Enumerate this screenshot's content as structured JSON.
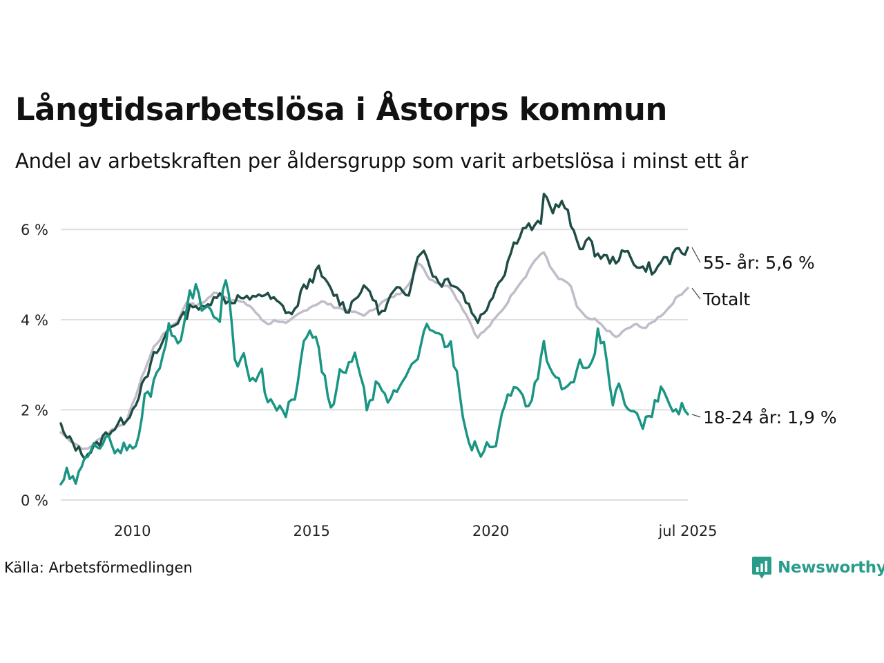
{
  "header": {
    "title": "Långtidsarbetslösa i Åstorps kommun",
    "subtitle": "Andel av arbetskraften per åldersgrupp som varit arbetslösa i minst ett år"
  },
  "footer": {
    "source": "Källa: Arbetsförmedlingen",
    "brand": "Newsworthy",
    "brand_icon": "newsworthy-logo-icon"
  },
  "colors": {
    "s55": "#1f4d45",
    "total": "#c0bcc9",
    "s1824": "#1a9583",
    "grid": "#dddddd"
  },
  "chart_data": {
    "type": "line",
    "title": "Långtidsarbetslösa i Åstorps kommun",
    "subtitle": "Andel av arbetskraften per åldersgrupp som varit arbetslösa i minst ett år",
    "xlabel": "",
    "ylabel": "",
    "x_start": "2008-01",
    "x_end": "2025-07",
    "x_ticks": [
      {
        "label": "2010",
        "x": 2010.0
      },
      {
        "label": "2015",
        "x": 2015.0
      },
      {
        "label": "2020",
        "x": 2020.0
      },
      {
        "label": "jul 2025",
        "x": 2025.5
      }
    ],
    "y_ticks": [
      {
        "label": "0 %",
        "value": 0
      },
      {
        "label": "2 %",
        "value": 2
      },
      {
        "label": "4 %",
        "value": 4
      },
      {
        "label": "6 %",
        "value": 6
      }
    ],
    "ylim": [
      0,
      6.8
    ],
    "grid": true,
    "series": [
      {
        "key": "total",
        "name": "Totalt",
        "label": "Totalt",
        "color": "#c0bcc9",
        "anchors": [
          [
            2008.0,
            1.5
          ],
          [
            2008.3,
            1.3
          ],
          [
            2008.7,
            1.1
          ],
          [
            2009.0,
            1.3
          ],
          [
            2009.5,
            1.6
          ],
          [
            2009.8,
            1.7
          ],
          [
            2010.0,
            2.1
          ],
          [
            2010.3,
            2.8
          ],
          [
            2010.6,
            3.4
          ],
          [
            2010.8,
            3.6
          ],
          [
            2011.0,
            3.8
          ],
          [
            2011.3,
            4.0
          ],
          [
            2011.5,
            4.4
          ],
          [
            2011.8,
            4.3
          ],
          [
            2012.0,
            4.4
          ],
          [
            2012.3,
            4.6
          ],
          [
            2012.6,
            4.5
          ],
          [
            2013.0,
            4.4
          ],
          [
            2013.3,
            4.3
          ],
          [
            2013.6,
            4.0
          ],
          [
            2013.8,
            3.9
          ],
          [
            2014.0,
            4.0
          ],
          [
            2014.3,
            3.9
          ],
          [
            2014.6,
            4.1
          ],
          [
            2015.0,
            4.3
          ],
          [
            2015.3,
            4.4
          ],
          [
            2015.6,
            4.3
          ],
          [
            2016.0,
            4.2
          ],
          [
            2016.5,
            4.1
          ],
          [
            2017.0,
            4.4
          ],
          [
            2017.5,
            4.6
          ],
          [
            2017.8,
            4.9
          ],
          [
            2018.0,
            5.3
          ],
          [
            2018.3,
            4.9
          ],
          [
            2018.6,
            4.8
          ],
          [
            2018.9,
            4.7
          ],
          [
            2019.1,
            4.4
          ],
          [
            2019.4,
            4.0
          ],
          [
            2019.6,
            3.6
          ],
          [
            2019.9,
            3.8
          ],
          [
            2020.1,
            4.0
          ],
          [
            2020.4,
            4.3
          ],
          [
            2020.7,
            4.7
          ],
          [
            2021.0,
            5.0
          ],
          [
            2021.2,
            5.3
          ],
          [
            2021.5,
            5.5
          ],
          [
            2021.7,
            5.1
          ],
          [
            2021.9,
            4.9
          ],
          [
            2022.2,
            4.8
          ],
          [
            2022.4,
            4.3
          ],
          [
            2022.7,
            4.0
          ],
          [
            2022.9,
            4.0
          ],
          [
            2023.2,
            3.8
          ],
          [
            2023.5,
            3.6
          ],
          [
            2023.8,
            3.8
          ],
          [
            2024.1,
            3.9
          ],
          [
            2024.3,
            3.8
          ],
          [
            2024.6,
            4.0
          ],
          [
            2024.9,
            4.2
          ],
          [
            2025.2,
            4.5
          ],
          [
            2025.5,
            4.7
          ]
        ],
        "end_value": 4.7
      },
      {
        "key": "s55",
        "name": "55- år",
        "label": "55- år: 5,6 %",
        "color": "#1f4d45",
        "anchors": [
          [
            2008.0,
            1.7
          ],
          [
            2008.1,
            1.4
          ],
          [
            2008.3,
            1.3
          ],
          [
            2008.5,
            1.1
          ],
          [
            2008.7,
            1.0
          ],
          [
            2009.0,
            1.2
          ],
          [
            2009.3,
            1.5
          ],
          [
            2009.5,
            1.6
          ],
          [
            2009.8,
            1.8
          ],
          [
            2010.0,
            2.0
          ],
          [
            2010.2,
            2.4
          ],
          [
            2010.4,
            2.7
          ],
          [
            2010.6,
            3.2
          ],
          [
            2010.8,
            3.4
          ],
          [
            2011.0,
            3.8
          ],
          [
            2011.3,
            4.0
          ],
          [
            2011.5,
            4.1
          ],
          [
            2011.7,
            4.4
          ],
          [
            2011.9,
            4.2
          ],
          [
            2012.1,
            4.3
          ],
          [
            2012.3,
            4.6
          ],
          [
            2012.5,
            4.5
          ],
          [
            2012.7,
            4.4
          ],
          [
            2013.0,
            4.5
          ],
          [
            2013.3,
            4.4
          ],
          [
            2013.5,
            4.6
          ],
          [
            2013.8,
            4.5
          ],
          [
            2014.0,
            4.4
          ],
          [
            2014.3,
            4.2
          ],
          [
            2014.5,
            4.1
          ],
          [
            2014.7,
            4.6
          ],
          [
            2014.9,
            4.8
          ],
          [
            2015.2,
            5.1
          ],
          [
            2015.4,
            4.8
          ],
          [
            2015.6,
            4.6
          ],
          [
            2015.8,
            4.4
          ],
          [
            2016.0,
            4.2
          ],
          [
            2016.3,
            4.6
          ],
          [
            2016.6,
            4.7
          ],
          [
            2016.8,
            4.3
          ],
          [
            2017.0,
            4.1
          ],
          [
            2017.2,
            4.5
          ],
          [
            2017.5,
            4.7
          ],
          [
            2017.7,
            4.6
          ],
          [
            2017.9,
            5.2
          ],
          [
            2018.0,
            5.6
          ],
          [
            2018.2,
            5.4
          ],
          [
            2018.4,
            5.0
          ],
          [
            2018.6,
            4.8
          ],
          [
            2018.8,
            4.9
          ],
          [
            2019.0,
            4.8
          ],
          [
            2019.2,
            4.6
          ],
          [
            2019.4,
            4.3
          ],
          [
            2019.6,
            4.0
          ],
          [
            2019.8,
            4.1
          ],
          [
            2020.0,
            4.5
          ],
          [
            2020.2,
            4.8
          ],
          [
            2020.4,
            5.1
          ],
          [
            2020.6,
            5.6
          ],
          [
            2020.8,
            5.9
          ],
          [
            2021.0,
            6.1
          ],
          [
            2021.2,
            6.0
          ],
          [
            2021.4,
            6.2
          ],
          [
            2021.5,
            6.8
          ],
          [
            2021.7,
            6.4
          ],
          [
            2021.9,
            6.6
          ],
          [
            2022.1,
            6.5
          ],
          [
            2022.3,
            5.9
          ],
          [
            2022.5,
            5.6
          ],
          [
            2022.7,
            5.8
          ],
          [
            2022.9,
            5.5
          ],
          [
            2023.1,
            5.4
          ],
          [
            2023.4,
            5.3
          ],
          [
            2023.6,
            5.4
          ],
          [
            2023.8,
            5.5
          ],
          [
            2024.0,
            5.3
          ],
          [
            2024.2,
            5.1
          ],
          [
            2024.4,
            5.2
          ],
          [
            2024.6,
            5.0
          ],
          [
            2024.8,
            5.4
          ],
          [
            2025.0,
            5.3
          ],
          [
            2025.2,
            5.5
          ],
          [
            2025.4,
            5.5
          ],
          [
            2025.5,
            5.6
          ]
        ],
        "end_value": 5.6
      },
      {
        "key": "s1824",
        "name": "18-24 år",
        "label": "18-24 år: 1,9 %",
        "color": "#1a9583",
        "anchors": [
          [
            2008.0,
            0.35
          ],
          [
            2008.15,
            0.6
          ],
          [
            2008.3,
            0.35
          ],
          [
            2008.5,
            0.5
          ],
          [
            2008.7,
            0.9
          ],
          [
            2008.9,
            1.4
          ],
          [
            2009.1,
            1.2
          ],
          [
            2009.3,
            1.3
          ],
          [
            2009.5,
            1.2
          ],
          [
            2009.7,
            1.1
          ],
          [
            2009.9,
            1.3
          ],
          [
            2010.0,
            1.0
          ],
          [
            2010.2,
            1.5
          ],
          [
            2010.35,
            2.3
          ],
          [
            2010.5,
            2.4
          ],
          [
            2010.7,
            2.9
          ],
          [
            2010.9,
            3.4
          ],
          [
            2011.0,
            3.8
          ],
          [
            2011.2,
            3.6
          ],
          [
            2011.4,
            3.7
          ],
          [
            2011.6,
            4.5
          ],
          [
            2011.8,
            4.8
          ],
          [
            2012.0,
            4.1
          ],
          [
            2012.2,
            4.3
          ],
          [
            2012.4,
            3.9
          ],
          [
            2012.6,
            5.0
          ],
          [
            2012.8,
            3.9
          ],
          [
            2012.9,
            2.8
          ],
          [
            2013.1,
            3.3
          ],
          [
            2013.3,
            2.5
          ],
          [
            2013.6,
            2.8
          ],
          [
            2013.8,
            2.2
          ],
          [
            2014.0,
            2.0
          ],
          [
            2014.2,
            1.9
          ],
          [
            2014.4,
            2.1
          ],
          [
            2014.6,
            2.4
          ],
          [
            2014.8,
            3.6
          ],
          [
            2015.0,
            3.7
          ],
          [
            2015.2,
            3.3
          ],
          [
            2015.4,
            2.5
          ],
          [
            2015.6,
            2.0
          ],
          [
            2015.8,
            2.8
          ],
          [
            2016.0,
            2.8
          ],
          [
            2016.2,
            3.4
          ],
          [
            2016.4,
            2.5
          ],
          [
            2016.6,
            2.0
          ],
          [
            2016.8,
            2.5
          ],
          [
            2017.0,
            2.3
          ],
          [
            2017.2,
            2.2
          ],
          [
            2017.4,
            2.5
          ],
          [
            2017.6,
            2.7
          ],
          [
            2017.8,
            3.1
          ],
          [
            2018.0,
            3.3
          ],
          [
            2018.2,
            3.8
          ],
          [
            2018.4,
            3.6
          ],
          [
            2018.5,
            3.9
          ],
          [
            2018.7,
            3.4
          ],
          [
            2018.9,
            3.4
          ],
          [
            2019.1,
            2.5
          ],
          [
            2019.3,
            1.4
          ],
          [
            2019.5,
            1.2
          ],
          [
            2019.7,
            1.0
          ],
          [
            2019.9,
            1.2
          ],
          [
            2020.1,
            1.1
          ],
          [
            2020.3,
            2.0
          ],
          [
            2020.5,
            2.3
          ],
          [
            2020.7,
            2.5
          ],
          [
            2020.9,
            2.3
          ],
          [
            2021.1,
            2.1
          ],
          [
            2021.3,
            2.8
          ],
          [
            2021.5,
            3.5
          ],
          [
            2021.7,
            2.7
          ],
          [
            2021.9,
            2.6
          ],
          [
            2022.1,
            2.4
          ],
          [
            2022.3,
            2.7
          ],
          [
            2022.5,
            3.0
          ],
          [
            2022.7,
            2.7
          ],
          [
            2022.9,
            3.3
          ],
          [
            2023.0,
            3.7
          ],
          [
            2023.2,
            3.3
          ],
          [
            2023.4,
            2.2
          ],
          [
            2023.6,
            2.5
          ],
          [
            2023.8,
            2.0
          ],
          [
            2024.0,
            1.9
          ],
          [
            2024.2,
            1.7
          ],
          [
            2024.4,
            1.7
          ],
          [
            2024.6,
            2.3
          ],
          [
            2024.8,
            2.4
          ],
          [
            2025.0,
            2.2
          ],
          [
            2025.2,
            2.0
          ],
          [
            2025.4,
            2.0
          ],
          [
            2025.5,
            1.9
          ]
        ],
        "end_value": 1.9
      }
    ]
  }
}
